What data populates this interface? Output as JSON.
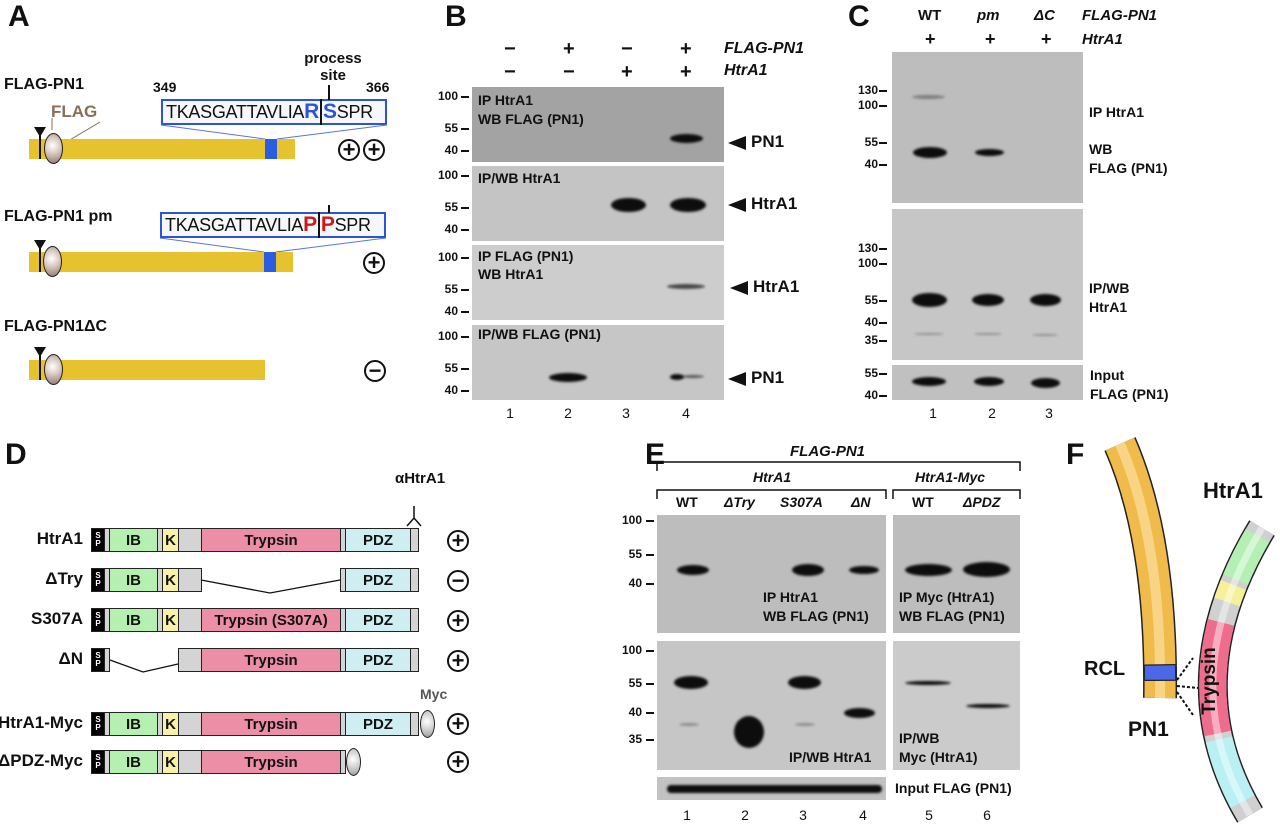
{
  "panelA": {
    "label": "A",
    "process_site": "process site",
    "start_residue": "349",
    "end_residue": "366",
    "flag_tag": "FLAG",
    "constructs": [
      {
        "name": "FLAG-PN1",
        "results": [
          "+",
          "+"
        ]
      },
      {
        "name": "FLAG-PN1 pm",
        "results": [
          "+"
        ]
      },
      {
        "name": "FLAG-PN1ΔC",
        "results": [
          "−"
        ]
      }
    ],
    "wt_seq": {
      "prefix": "TKASGATTAVLIA",
      "p1": "R",
      "p1prime": "S",
      "suffix": "SPR"
    },
    "pm_seq": {
      "prefix": "TKASGATTAVLIA",
      "p1": "P",
      "p1prime": "P",
      "suffix": "SPR"
    },
    "colors": {
      "wt_site": "#2c55d6",
      "pm_site": "#cc1a1a",
      "bar": "#e6c22e"
    }
  },
  "panelB": {
    "label": "B",
    "row_labels": [
      "FLAG-PN1",
      "HtrA1"
    ],
    "flag_pn1": [
      "−",
      "+",
      "−",
      "+"
    ],
    "htra1": [
      "−",
      "−",
      "+",
      "+"
    ],
    "blots": [
      {
        "title": [
          "IP HtrA1",
          "WB FLAG (PN1)"
        ],
        "markers": [
          "100",
          "55",
          "40"
        ],
        "arrow": "PN1"
      },
      {
        "title": [
          "IP/WB HtrA1"
        ],
        "markers": [
          "100",
          "55",
          "40"
        ],
        "arrow": "HtrA1"
      },
      {
        "title": [
          "IP FLAG (PN1)",
          "WB HtrA1"
        ],
        "markers": [
          "100",
          "55",
          "40"
        ],
        "arrow": "HtrA1"
      },
      {
        "title": [
          "IP/WB FLAG (PN1)"
        ],
        "markers": [
          "100",
          "55",
          "40"
        ],
        "arrow": "PN1"
      }
    ],
    "lanes": [
      "1",
      "2",
      "3",
      "4"
    ]
  },
  "panelC": {
    "label": "C",
    "columns": [
      "WT",
      "pm",
      "ΔC"
    ],
    "row_labels": [
      "FLAG-PN1",
      "HtrA1"
    ],
    "htra1": [
      "+",
      "+",
      "+"
    ],
    "blots": [
      {
        "title": [
          "IP HtrA1",
          "WB",
          "FLAG (PN1)"
        ],
        "markers": [
          "130",
          "100",
          "55",
          "40"
        ]
      },
      {
        "title": [
          "IP/WB",
          "HtrA1"
        ],
        "markers": [
          "130",
          "100",
          "55",
          "40",
          "35"
        ]
      },
      {
        "title": [
          "Input",
          "FLAG (PN1)"
        ],
        "markers": [
          "55",
          "40"
        ]
      }
    ],
    "lanes": [
      "1",
      "2",
      "3"
    ]
  },
  "panelD": {
    "label": "D",
    "antibody": "αHtrA1",
    "myc": "Myc",
    "domains": {
      "sp": [
        "S",
        "P"
      ],
      "ib": "IB",
      "k": "K",
      "trypsin": "Trypsin",
      "trypsin_mut": "Trypsin (S307A)",
      "pdz": "PDZ"
    },
    "constructs": [
      {
        "name": "HtrA1",
        "result": "+"
      },
      {
        "name": "ΔTry",
        "result": "−"
      },
      {
        "name": "S307A",
        "result": "+"
      },
      {
        "name": "ΔN",
        "result": "+"
      },
      {
        "name": "HtrA1-Myc",
        "result": "+"
      },
      {
        "name": "ΔPDZ-Myc",
        "result": "+"
      }
    ]
  },
  "panelE": {
    "label": "E",
    "top_group": "FLAG-PN1",
    "groups": [
      "HtrA1",
      "HtrA1-Myc"
    ],
    "columns": [
      "WT",
      "ΔTry",
      "S307A",
      "ΔN",
      "WT",
      "ΔPDZ"
    ],
    "markers_top": [
      "100",
      "55",
      "40"
    ],
    "markers_mid": [
      "100",
      "55",
      "40",
      "35"
    ],
    "blot_labels": {
      "top_left": [
        "IP HtrA1",
        "WB FLAG (PN1)"
      ],
      "top_right": [
        "IP Myc (HtrA1)",
        "WB FLAG (PN1)"
      ],
      "mid_left": [
        "IP/WB HtrA1"
      ],
      "mid_right": [
        "IP/WB",
        "Myc (HtrA1)"
      ],
      "input": "Input FLAG (PN1)"
    },
    "lanes": [
      "1",
      "2",
      "3",
      "4",
      "5",
      "6"
    ]
  },
  "panelF": {
    "label": "F",
    "htra1": "HtrA1",
    "rcl": "RCL",
    "pn1": "PN1",
    "trypsin": "Trypsin"
  }
}
